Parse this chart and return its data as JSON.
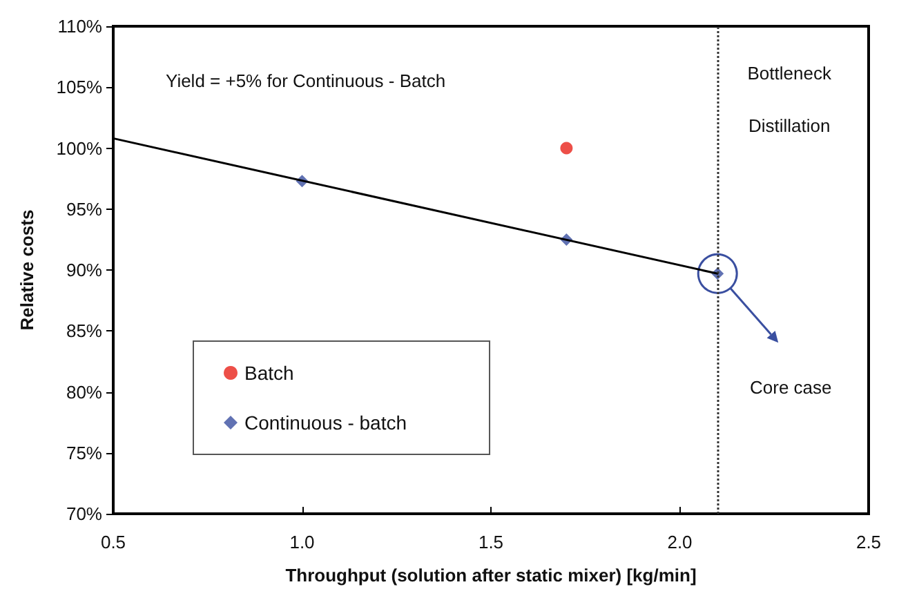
{
  "chart_data": {
    "type": "scatter",
    "xlabel": "Throughput (solution after static mixer) [kg/min]",
    "ylabel": "Relative costs",
    "xlim": [
      0.5,
      2.5
    ],
    "xticks": [
      {
        "value": 0.5,
        "label": "0.5"
      },
      {
        "value": 1,
        "label": "1.0"
      },
      {
        "value": 1.5,
        "label": "1.5"
      },
      {
        "value": 2,
        "label": "2.0"
      },
      {
        "value": 2.5,
        "label": "2.5"
      }
    ],
    "ylim": [
      70,
      110
    ],
    "yticks": [
      {
        "value": 70,
        "label": "70%"
      },
      {
        "value": 75,
        "label": "75%"
      },
      {
        "value": 80,
        "label": "80%"
      },
      {
        "value": 85,
        "label": "85%"
      },
      {
        "value": 90,
        "label": "90%"
      },
      {
        "value": 95,
        "label": "95%"
      },
      {
        "value": 100,
        "label": "100%"
      },
      {
        "value": 105,
        "label": "105%"
      },
      {
        "value": 110,
        "label": "110%"
      }
    ],
    "series": [
      {
        "type": "line",
        "color": "#000000",
        "x": [
          0.5,
          2.1
        ],
        "values": [
          100.8,
          89.7
        ],
        "line_style": "solid"
      },
      {
        "name": "Batch",
        "color": "#e8231a",
        "x": [
          1.7
        ],
        "values": [
          100
        ],
        "marker": "circle"
      },
      {
        "name": "Continuous - batch",
        "color": "#3a4fa0",
        "x": [
          1.0,
          1.7,
          2.1
        ],
        "values": [
          97.3,
          92.5,
          89.7
        ],
        "marker": "diamond"
      }
    ],
    "ref_lines": [
      {
        "axis": "x",
        "value": 2.1,
        "label": "Bottleneck\nDistillation",
        "color": "#333333",
        "line_style": "dotted"
      }
    ],
    "annotations": [
      "Yield = +5% for Continuous - Batch",
      "Core case"
    ],
    "legend": "bottom left",
    "grid": false
  }
}
